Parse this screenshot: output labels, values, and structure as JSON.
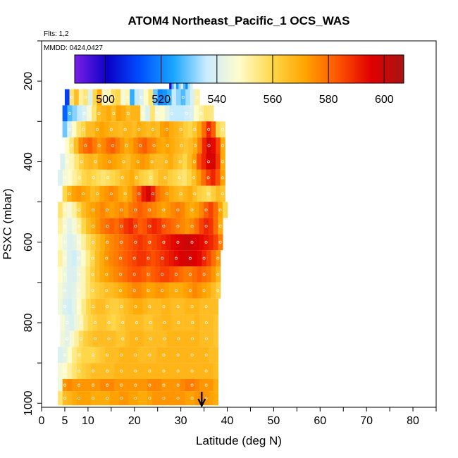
{
  "chart_data": {
    "type": "heatmap",
    "title": "ATOM4 Northeast_Pacific_1 OCS_WAS",
    "flights_label": "Flts: 1,2",
    "dates_label": "MMDD: 0424,0427",
    "xlabel": "Latitude (deg N)",
    "ylabel": "PSXC (mbar)",
    "xlim": [
      0,
      85
    ],
    "ylim": [
      1010,
      100
    ],
    "x_ticks": [
      0,
      5,
      10,
      20,
      30,
      40,
      50,
      60,
      70,
      80
    ],
    "y_ticks": [
      200,
      400,
      600,
      800,
      1000
    ],
    "colorbar": {
      "range": [
        489,
        607
      ],
      "ticks": [
        500,
        520,
        540,
        560,
        580,
        600
      ],
      "colors": [
        "#7a1fe6",
        "#0a00c8",
        "#0050ff",
        "#19a6ff",
        "#c8ecff",
        "#fffccc",
        "#ffd84a",
        "#ffa500",
        "#ff5500",
        "#e00000",
        "#a81414"
      ]
    },
    "arrow_latitude": 34.5,
    "rows": [
      {
        "p_top": 175,
        "p_bot": 220,
        "lat_start": 27.5,
        "lat_end": 32.5,
        "values": [
          498,
          528,
          536,
          522,
          532,
          540,
          528,
          520,
          534,
          540
        ]
      },
      {
        "p_top": 220,
        "p_bot": 260,
        "lat_start": 5.0,
        "lat_end": 34.0,
        "values": [
          510,
          556,
          566,
          552,
          556,
          540,
          560,
          570,
          546,
          550,
          558,
          560,
          546,
          550,
          526,
          536,
          540,
          548,
          556,
          530,
          520,
          522,
          526,
          536,
          532,
          528,
          534,
          540,
          552
        ]
      },
      {
        "p_top": 260,
        "p_bot": 300,
        "lat_start": 4.5,
        "lat_end": 37.0,
        "values": [
          515,
          528,
          532,
          536,
          540,
          546,
          556,
          566,
          568,
          570,
          566,
          572,
          570,
          566,
          568,
          568,
          546,
          540,
          556,
          546,
          548,
          542,
          536,
          536,
          536,
          538,
          540,
          548,
          552,
          556,
          555
        ]
      },
      {
        "p_top": 300,
        "p_bot": 340,
        "lat_start": 4.5,
        "lat_end": 39.5,
        "values": [
          530,
          540,
          548,
          556,
          560,
          566,
          566,
          570,
          572,
          570,
          568,
          568,
          566,
          568,
          568,
          566,
          570,
          568,
          566,
          568,
          566,
          572,
          574,
          570,
          568,
          566,
          562,
          560,
          564,
          570,
          580,
          590,
          582,
          560,
          556
        ]
      },
      {
        "p_top": 340,
        "p_bot": 380,
        "lat_start": 5.0,
        "lat_end": 39.5,
        "values": [
          548,
          556,
          566,
          576,
          580,
          582,
          578,
          574,
          576,
          580,
          582,
          578,
          574,
          570,
          572,
          576,
          580,
          582,
          578,
          576,
          572,
          570,
          572,
          570,
          568,
          566,
          564,
          566,
          570,
          578,
          590,
          598,
          594,
          586,
          570
        ]
      },
      {
        "p_top": 380,
        "p_bot": 420,
        "lat_start": 4.0,
        "lat_end": 39.5,
        "values": [
          540,
          546,
          550,
          556,
          562,
          566,
          568,
          566,
          570,
          572,
          574,
          572,
          570,
          568,
          566,
          570,
          572,
          574,
          572,
          568,
          566,
          566,
          568,
          570,
          566,
          564,
          560,
          566,
          572,
          584,
          590,
          596,
          598,
          588,
          570
        ]
      },
      {
        "p_top": 420,
        "p_bot": 460,
        "lat_start": 3.5,
        "lat_end": 39.5,
        "values": [
          540,
          546,
          548,
          552,
          556,
          560,
          562,
          560,
          558,
          556,
          558,
          560,
          562,
          566,
          568,
          570,
          566,
          562,
          560,
          558,
          562,
          566,
          566,
          562,
          560,
          558,
          556,
          560,
          566,
          572,
          580,
          586,
          590,
          584,
          572
        ]
      },
      {
        "p_top": 460,
        "p_bot": 500,
        "lat_start": 4.5,
        "lat_end": 39.5,
        "values": [
          560,
          568,
          572,
          574,
          572,
          570,
          566,
          568,
          572,
          574,
          576,
          574,
          570,
          568,
          572,
          578,
          584,
          592,
          598,
          590,
          580,
          576,
          574,
          570,
          568,
          566,
          568,
          570,
          566,
          562,
          560,
          558,
          562,
          566,
          564
        ]
      },
      {
        "p_top": 500,
        "p_bot": 540,
        "lat_start": 3.5,
        "lat_end": 40.0,
        "values": [
          556,
          550,
          546,
          552,
          560,
          566,
          570,
          572,
          574,
          576,
          574,
          572,
          574,
          576,
          574,
          578,
          580,
          582,
          580,
          578,
          576,
          574,
          572,
          574,
          576,
          578,
          576,
          572,
          570,
          572,
          576,
          582,
          586,
          580,
          572,
          560
        ]
      },
      {
        "p_top": 540,
        "p_bot": 580,
        "lat_start": 3.5,
        "lat_end": 39.0,
        "values": [
          552,
          546,
          542,
          546,
          552,
          560,
          566,
          570,
          574,
          578,
          580,
          582,
          580,
          584,
          588,
          590,
          586,
          582,
          584,
          588,
          590,
          588,
          584,
          582,
          580,
          578,
          576,
          574,
          576,
          580,
          586,
          590,
          588,
          580,
          570
        ]
      },
      {
        "p_top": 580,
        "p_bot": 620,
        "lat_start": 3.5,
        "lat_end": 39.0,
        "values": [
          548,
          544,
          540,
          542,
          546,
          552,
          558,
          562,
          566,
          570,
          574,
          576,
          578,
          580,
          582,
          584,
          586,
          588,
          586,
          584,
          586,
          588,
          590,
          592,
          594,
          596,
          598,
          600,
          598,
          596,
          594,
          592,
          590,
          586,
          578
        ]
      },
      {
        "p_top": 620,
        "p_bot": 660,
        "lat_start": 3.5,
        "lat_end": 38.5,
        "values": [
          552,
          546,
          540,
          538,
          542,
          548,
          554,
          560,
          566,
          570,
          574,
          576,
          578,
          580,
          582,
          584,
          586,
          588,
          588,
          586,
          584,
          586,
          588,
          590,
          592,
          594,
          596,
          598,
          598,
          596,
          594,
          590,
          586,
          580,
          574
        ]
      },
      {
        "p_top": 660,
        "p_bot": 700,
        "lat_start": 3.5,
        "lat_end": 38.5,
        "values": [
          548,
          544,
          540,
          540,
          544,
          550,
          556,
          562,
          566,
          570,
          572,
          574,
          576,
          578,
          580,
          582,
          584,
          584,
          582,
          580,
          582,
          584,
          586,
          586,
          584,
          582,
          580,
          578,
          578,
          580,
          582,
          580,
          578,
          574,
          568
        ]
      },
      {
        "p_top": 700,
        "p_bot": 740,
        "lat_start": 3.5,
        "lat_end": 38.5,
        "values": [
          546,
          542,
          540,
          542,
          546,
          550,
          556,
          560,
          562,
          564,
          566,
          566,
          568,
          570,
          572,
          574,
          576,
          576,
          574,
          572,
          572,
          574,
          574,
          572,
          570,
          570,
          570,
          572,
          574,
          576,
          574,
          572,
          570,
          566,
          562
        ]
      },
      {
        "p_top": 740,
        "p_bot": 780,
        "lat_start": 3.5,
        "lat_end": 38.0,
        "values": [
          544,
          540,
          538,
          542,
          548,
          554,
          560,
          564,
          566,
          566,
          564,
          562,
          562,
          564,
          566,
          568,
          570,
          570,
          568,
          566,
          566,
          566,
          568,
          568,
          566,
          566,
          566,
          568,
          568,
          568,
          566,
          566,
          566,
          566
        ]
      },
      {
        "p_top": 780,
        "p_bot": 820,
        "lat_start": 4.0,
        "lat_end": 38.0,
        "values": [
          546,
          542,
          540,
          544,
          550,
          556,
          560,
          562,
          564,
          564,
          562,
          560,
          562,
          564,
          566,
          566,
          566,
          566,
          564,
          564,
          566,
          566,
          568,
          568,
          566,
          566,
          566,
          566,
          566,
          568,
          566,
          566,
          566,
          564
        ]
      },
      {
        "p_top": 820,
        "p_bot": 860,
        "lat_start": 4.0,
        "lat_end": 38.0,
        "values": [
          544,
          542,
          546,
          552,
          558,
          562,
          564,
          566,
          566,
          566,
          566,
          566,
          564,
          564,
          566,
          568,
          568,
          568,
          566,
          566,
          566,
          566,
          566,
          568,
          568,
          568,
          568,
          568,
          568,
          568,
          566,
          566,
          566,
          564
        ]
      },
      {
        "p_top": 860,
        "p_bot": 900,
        "lat_start": 3.5,
        "lat_end": 38.0,
        "values": [
          540,
          542,
          548,
          554,
          558,
          560,
          560,
          560,
          562,
          564,
          566,
          566,
          566,
          568,
          568,
          568,
          568,
          566,
          566,
          566,
          566,
          568,
          568,
          568,
          568,
          568,
          568,
          568,
          568,
          568,
          568,
          568,
          566,
          566
        ]
      },
      {
        "p_top": 900,
        "p_bot": 940,
        "lat_start": 3.5,
        "lat_end": 38.0,
        "values": [
          546,
          548,
          552,
          556,
          560,
          562,
          564,
          566,
          566,
          566,
          566,
          566,
          568,
          568,
          568,
          568,
          568,
          568,
          568,
          568,
          568,
          568,
          568,
          568,
          568,
          568,
          568,
          568,
          568,
          568,
          568,
          568,
          568,
          566
        ]
      },
      {
        "p_top": 940,
        "p_bot": 970,
        "lat_start": 3.5,
        "lat_end": 38.0,
        "values": [
          544,
          574,
          576,
          574,
          574,
          574,
          574,
          574,
          574,
          576,
          576,
          576,
          574,
          574,
          574,
          574,
          574,
          574,
          574,
          576,
          576,
          576,
          574,
          574,
          574,
          574,
          576,
          578,
          578,
          576,
          574,
          574,
          574,
          570
        ]
      },
      {
        "p_top": 970,
        "p_bot": 1005,
        "lat_start": 3.5,
        "lat_end": 38.0,
        "values": [
          556,
          566,
          568,
          570,
          572,
          572,
          572,
          570,
          570,
          570,
          570,
          572,
          572,
          574,
          574,
          572,
          572,
          570,
          570,
          572,
          574,
          574,
          574,
          574,
          574,
          574,
          574,
          572,
          572,
          574,
          576,
          574,
          572,
          570
        ]
      }
    ]
  }
}
